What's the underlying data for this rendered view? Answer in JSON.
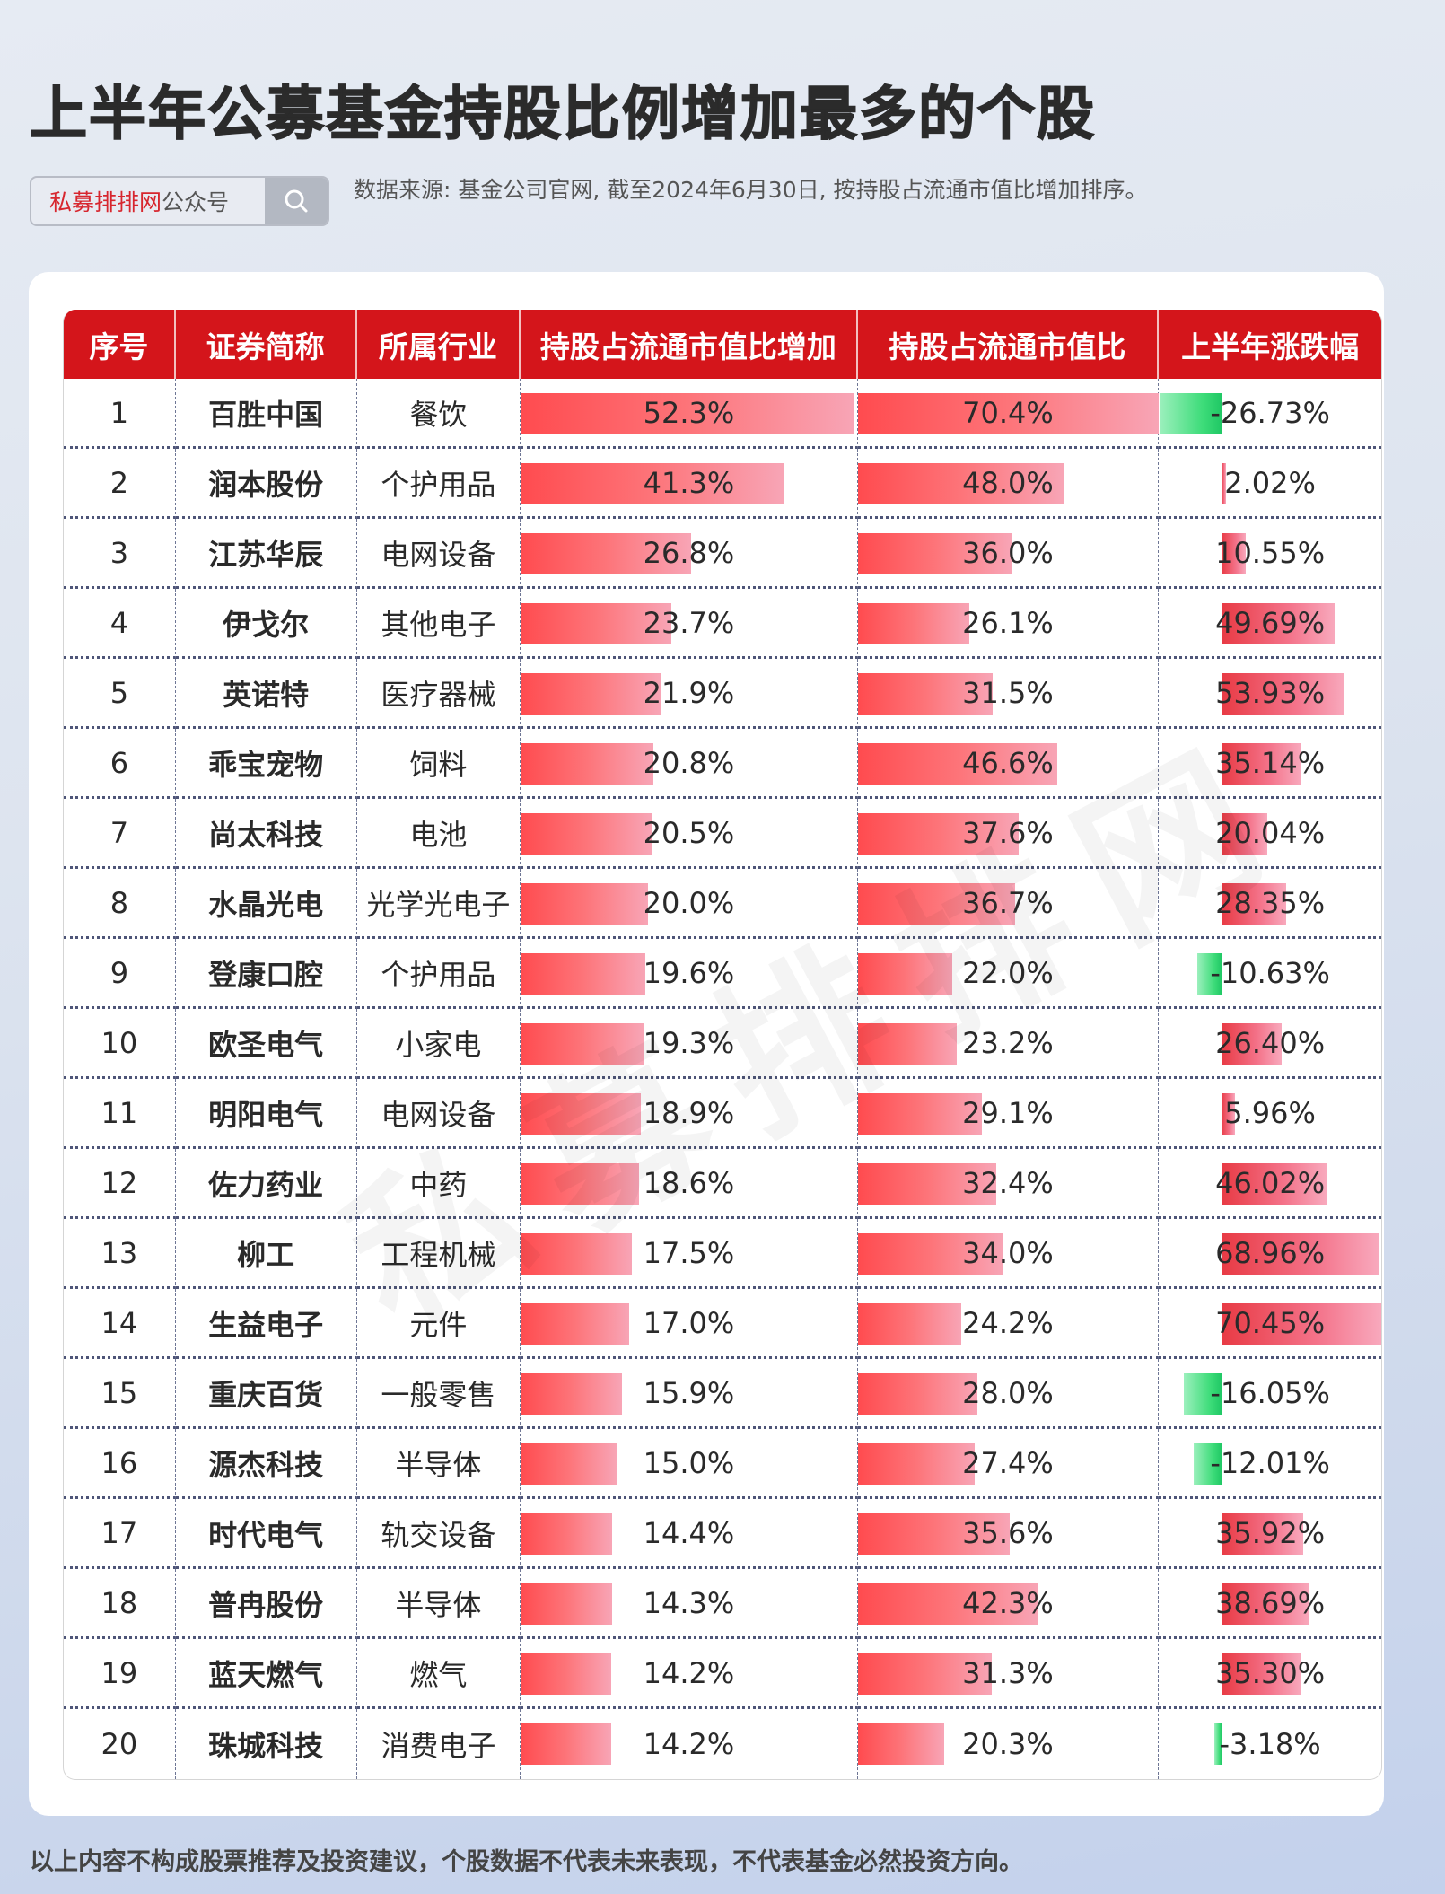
{
  "header": {
    "title": "上半年公募基金持股比例增加最多的个股",
    "search_box": {
      "brand": "私募排排网",
      "suffix": "公众号",
      "icon": "search-icon"
    },
    "source_note": "数据来源: 基金公司官网, 截至2024年6月30日, 按持股占流通市值比增加排序。"
  },
  "table": {
    "columns": [
      "序号",
      "证券简称",
      "所属行业",
      "持股占流通市值比增加",
      "持股占流通市值比",
      "上半年涨跌幅"
    ],
    "rows": [
      {
        "rank": "1",
        "name": "百胜中国",
        "industry": "餐饮",
        "increase": "52.3%",
        "ratio": "70.4%",
        "change": "-26.73%"
      },
      {
        "rank": "2",
        "name": "润本股份",
        "industry": "个护用品",
        "increase": "41.3%",
        "ratio": "48.0%",
        "change": "2.02%"
      },
      {
        "rank": "3",
        "name": "江苏华辰",
        "industry": "电网设备",
        "increase": "26.8%",
        "ratio": "36.0%",
        "change": "10.55%"
      },
      {
        "rank": "4",
        "name": "伊戈尔",
        "industry": "其他电子",
        "increase": "23.7%",
        "ratio": "26.1%",
        "change": "49.69%"
      },
      {
        "rank": "5",
        "name": "英诺特",
        "industry": "医疗器械",
        "increase": "21.9%",
        "ratio": "31.5%",
        "change": "53.93%"
      },
      {
        "rank": "6",
        "name": "乖宝宠物",
        "industry": "饲料",
        "increase": "20.8%",
        "ratio": "46.6%",
        "change": "35.14%"
      },
      {
        "rank": "7",
        "name": "尚太科技",
        "industry": "电池",
        "increase": "20.5%",
        "ratio": "37.6%",
        "change": "20.04%"
      },
      {
        "rank": "8",
        "name": "水晶光电",
        "industry": "光学光电子",
        "increase": "20.0%",
        "ratio": "36.7%",
        "change": "28.35%"
      },
      {
        "rank": "9",
        "name": "登康口腔",
        "industry": "个护用品",
        "increase": "19.6%",
        "ratio": "22.0%",
        "change": "-10.63%"
      },
      {
        "rank": "10",
        "name": "欧圣电气",
        "industry": "小家电",
        "increase": "19.3%",
        "ratio": "23.2%",
        "change": "26.40%"
      },
      {
        "rank": "11",
        "name": "明阳电气",
        "industry": "电网设备",
        "increase": "18.9%",
        "ratio": "29.1%",
        "change": "5.96%"
      },
      {
        "rank": "12",
        "name": "佐力药业",
        "industry": "中药",
        "increase": "18.6%",
        "ratio": "32.4%",
        "change": "46.02%"
      },
      {
        "rank": "13",
        "name": "柳工",
        "industry": "工程机械",
        "increase": "17.5%",
        "ratio": "34.0%",
        "change": "68.96%"
      },
      {
        "rank": "14",
        "name": "生益电子",
        "industry": "元件",
        "increase": "17.0%",
        "ratio": "24.2%",
        "change": "70.45%"
      },
      {
        "rank": "15",
        "name": "重庆百货",
        "industry": "一般零售",
        "increase": "15.9%",
        "ratio": "28.0%",
        "change": "-16.05%"
      },
      {
        "rank": "16",
        "name": "源杰科技",
        "industry": "半导体",
        "increase": "15.0%",
        "ratio": "27.4%",
        "change": "-12.01%"
      },
      {
        "rank": "17",
        "name": "时代电气",
        "industry": "轨交设备",
        "increase": "14.4%",
        "ratio": "35.6%",
        "change": "35.92%"
      },
      {
        "rank": "18",
        "name": "普冉股份",
        "industry": "半导体",
        "increase": "14.3%",
        "ratio": "42.3%",
        "change": "38.69%"
      },
      {
        "rank": "19",
        "name": "蓝天燃气",
        "industry": "燃气",
        "increase": "14.2%",
        "ratio": "31.3%",
        "change": "35.30%"
      },
      {
        "rank": "20",
        "name": "珠城科技",
        "industry": "消费电子",
        "increase": "14.2%",
        "ratio": "20.3%",
        "change": "-3.18%"
      }
    ]
  },
  "watermark": "私募排排网",
  "footer": {
    "disclaimer": "以上内容不构成股票推荐及投资建议，个股数据不代表未来表现，不代表基金必然投资方向。"
  },
  "colors": {
    "header_red": "#d4151b",
    "bar_red": "#ff4b4f",
    "bar_pink": "#f8a5b6",
    "neg_green": "#3ddc79",
    "brand_red": "#d7262e"
  },
  "chart_data": {
    "type": "table",
    "title": "上半年公募基金持股比例增加最多的个股",
    "subtitle": "数据来源: 基金公司官网, 截至2024年6月30日, 按持股占流通市值比增加排序。",
    "categories": [
      "百胜中国",
      "润本股份",
      "江苏华辰",
      "伊戈尔",
      "英诺特",
      "乖宝宠物",
      "尚太科技",
      "水晶光电",
      "登康口腔",
      "欧圣电气",
      "明阳电气",
      "佐力药业",
      "柳工",
      "生益电子",
      "重庆百货",
      "源杰科技",
      "时代电气",
      "普冉股份",
      "蓝天燃气",
      "珠城科技"
    ],
    "industries": [
      "餐饮",
      "个护用品",
      "电网设备",
      "其他电子",
      "医疗器械",
      "饲料",
      "电池",
      "光学光电子",
      "个护用品",
      "小家电",
      "电网设备",
      "中药",
      "工程机械",
      "元件",
      "一般零售",
      "半导体",
      "轨交设备",
      "半导体",
      "燃气",
      "消费电子"
    ],
    "series": [
      {
        "name": "持股占流通市值比增加 (%)",
        "values": [
          52.3,
          41.3,
          26.8,
          23.7,
          21.9,
          20.8,
          20.5,
          20.0,
          19.6,
          19.3,
          18.9,
          18.6,
          17.5,
          17.0,
          15.9,
          15.0,
          14.4,
          14.3,
          14.2,
          14.2
        ]
      },
      {
        "name": "持股占流通市值比 (%)",
        "values": [
          70.4,
          48.0,
          36.0,
          26.1,
          31.5,
          46.6,
          37.6,
          36.7,
          22.0,
          23.2,
          29.1,
          32.4,
          34.0,
          24.2,
          28.0,
          27.4,
          35.6,
          42.3,
          31.3,
          20.3
        ]
      },
      {
        "name": "上半年涨跌幅 (%)",
        "values": [
          -26.73,
          2.02,
          10.55,
          49.69,
          53.93,
          35.14,
          20.04,
          28.35,
          -10.63,
          26.4,
          5.96,
          46.02,
          68.96,
          70.45,
          -16.05,
          -12.01,
          35.92,
          38.69,
          35.3,
          -3.18
        ]
      }
    ]
  }
}
